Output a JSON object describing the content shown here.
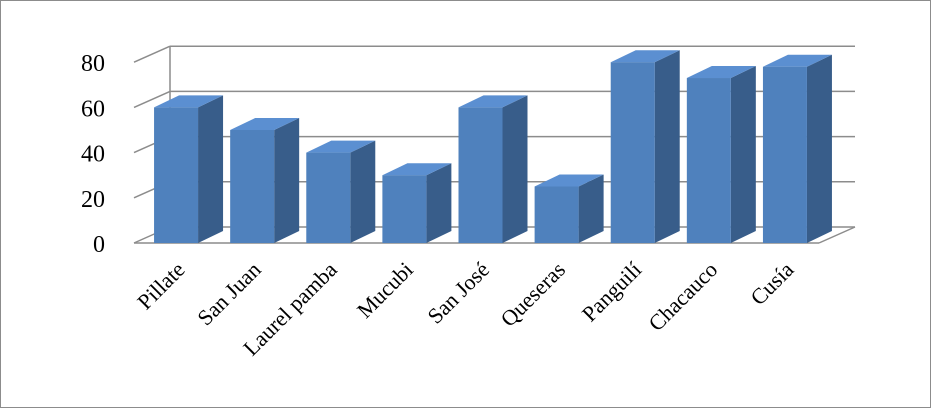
{
  "chart_data": {
    "type": "bar",
    "style": "3d-column",
    "title": "",
    "xlabel": "",
    "ylabel": "",
    "categories": [
      "Pillate",
      "San Juan",
      "Laurel pamba",
      "Mucubi",
      "San José",
      "Queseras",
      "Panguilí",
      "Chacauco",
      "Cusía"
    ],
    "values": [
      60,
      50,
      40,
      30,
      60,
      25,
      80,
      73,
      78
    ],
    "ylim": [
      0,
      80
    ],
    "yticks": [
      "0",
      "20",
      "40",
      "60",
      "80"
    ],
    "grid": true,
    "legend": "none",
    "colors": {
      "bar_front": "#4f81bd",
      "bar_side": "#385d8a",
      "bar_top": "#5b8fd1",
      "grid": "#8c8c8c"
    }
  }
}
